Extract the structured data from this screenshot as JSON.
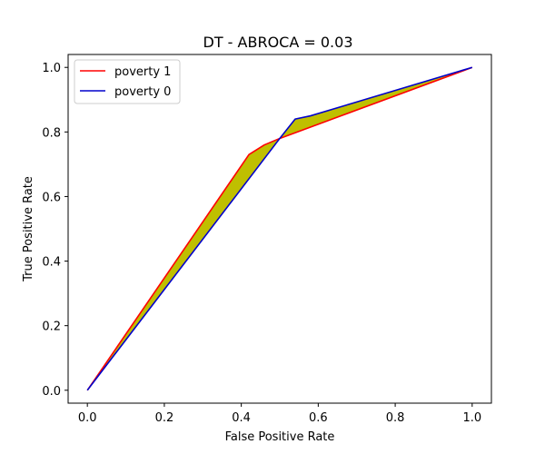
{
  "chart_data": {
    "type": "line",
    "title": "DT - ABROCA = 0.03",
    "xlabel": "False Positive Rate",
    "ylabel": "True Positive Rate",
    "xlim": [
      -0.05,
      1.05
    ],
    "ylim": [
      -0.04,
      1.04
    ],
    "xticks": [
      0.0,
      0.2,
      0.4,
      0.6,
      0.8,
      1.0
    ],
    "yticks": [
      0.0,
      0.2,
      0.4,
      0.6,
      0.8,
      1.0
    ],
    "xtick_labels": [
      "0.0",
      "0.2",
      "0.4",
      "0.6",
      "0.8",
      "1.0"
    ],
    "ytick_labels": [
      "0.0",
      "0.2",
      "0.4",
      "0.6",
      "0.8",
      "1.0"
    ],
    "grid": false,
    "legend_position": "top-left",
    "fill_between": true,
    "fill_color": "#bfbf00",
    "series": [
      {
        "name": "poverty 1",
        "color": "#ff0000",
        "x": [
          0.0,
          0.42,
          0.46,
          0.5,
          1.0
        ],
        "y": [
          0.0,
          0.73,
          0.76,
          0.78,
          1.0
        ]
      },
      {
        "name": "poverty 0",
        "color": "#0000cc",
        "x": [
          0.0,
          0.5,
          0.54,
          0.58,
          1.0
        ],
        "y": [
          0.0,
          0.78,
          0.84,
          0.85,
          1.0
        ]
      }
    ]
  }
}
